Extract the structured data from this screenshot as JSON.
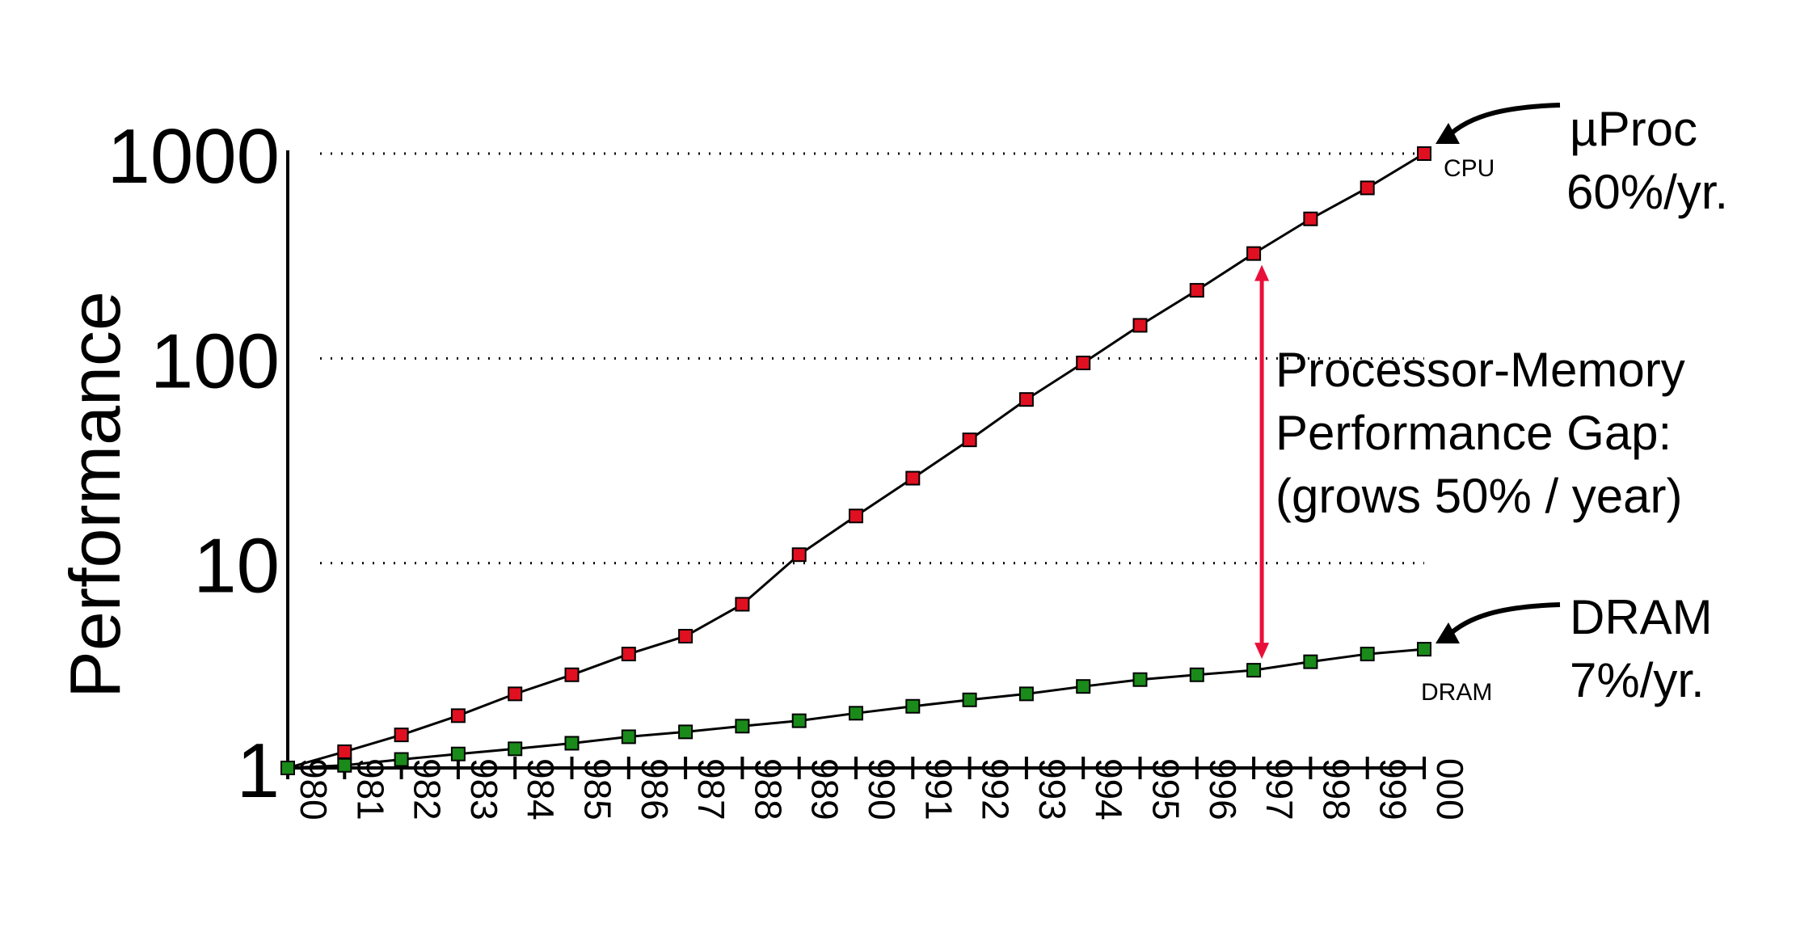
{
  "chart_data": {
    "type": "line",
    "ylabel": "Performance",
    "xlabel": "",
    "yscale": "log",
    "ylim": [
      1,
      1000
    ],
    "y_ticks": [
      "1",
      "10",
      "100",
      "1000"
    ],
    "x": [
      "1980",
      "1981",
      "1982",
      "1983",
      "1984",
      "1985",
      "1986",
      "1987",
      "1988",
      "1989",
      "1990",
      "1991",
      "1992",
      "1993",
      "1994",
      "1995",
      "1996",
      "1997",
      "1998",
      "1999",
      "2000"
    ],
    "x_tick_labels": [
      "980",
      "981",
      "982",
      "983",
      "984",
      "985",
      "986",
      "987",
      "988",
      "989",
      "990",
      "991",
      "992",
      "993",
      "994",
      "995",
      "996",
      "997",
      "998",
      "999",
      "000"
    ],
    "grid": "horizontal dotted",
    "series": [
      {
        "name": "CPU",
        "color": "#e01020",
        "values": [
          1,
          1.2,
          1.45,
          1.8,
          2.3,
          2.85,
          3.6,
          4.4,
          6.3,
          11,
          17,
          26,
          40,
          63,
          95,
          145,
          215,
          325,
          480,
          680,
          1000
        ]
      },
      {
        "name": "DRAM",
        "color": "#1a8a1a",
        "values": [
          1,
          1.03,
          1.1,
          1.17,
          1.24,
          1.32,
          1.42,
          1.5,
          1.6,
          1.7,
          1.85,
          2.0,
          2.15,
          2.3,
          2.5,
          2.7,
          2.85,
          3.0,
          3.3,
          3.6,
          3.8
        ]
      }
    ],
    "annotations": {
      "cpu_label": "CPU",
      "dram_label": "DRAM",
      "uproc_line1": "µProc",
      "uproc_line2": "60%/yr.",
      "dram_line1": "DRAM",
      "dram_line2": "7%/yr.",
      "gap_line1": "Processor-Memory",
      "gap_line2": "Performance Gap:",
      "gap_line3": "(grows 50% / year)"
    },
    "gap_arrow_year": "1997",
    "arrow_color": "#e8103a"
  }
}
